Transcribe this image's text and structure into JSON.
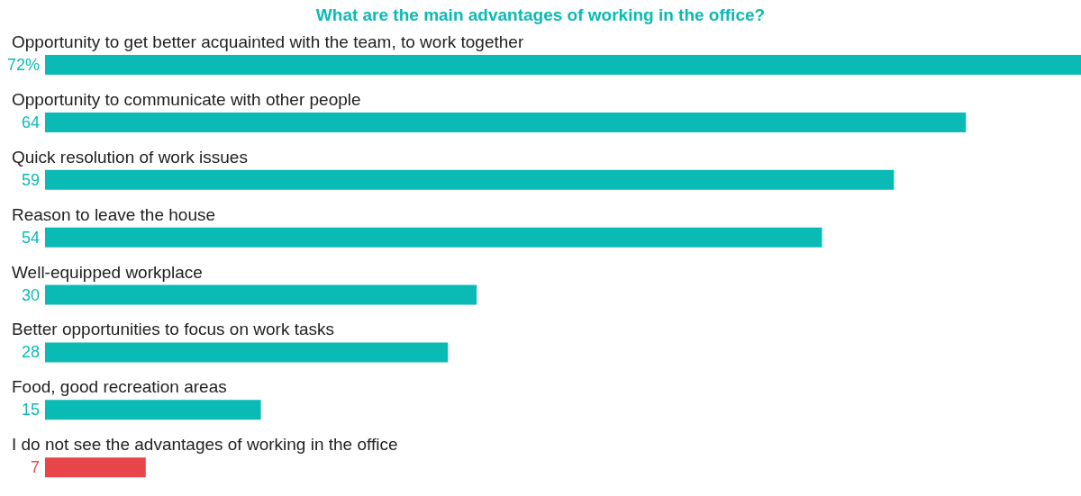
{
  "chart_data": {
    "type": "bar",
    "orientation": "horizontal",
    "title": "What are the main advantages of working in the office?",
    "categories": [
      "Opportunity to get better acquainted with the team, to work together",
      "Opportunity to communicate with other people",
      "Quick resolution of work issues",
      "Reason to leave the house",
      "Well-equipped workplace",
      "Better opportunities to focus on work tasks",
      "Food, good recreation areas",
      "I do not see the advantages of working in the office"
    ],
    "values": [
      72,
      64,
      59,
      54,
      30,
      28,
      15,
      7
    ],
    "value_labels": [
      "72%",
      "64",
      "59",
      "54",
      "30",
      "28",
      "15",
      "7"
    ],
    "colors": [
      "#0abab5",
      "#0abab5",
      "#0abab5",
      "#0abab5",
      "#0abab5",
      "#0abab5",
      "#0abab5",
      "#e8454a"
    ],
    "grid": false,
    "legend": false
  }
}
